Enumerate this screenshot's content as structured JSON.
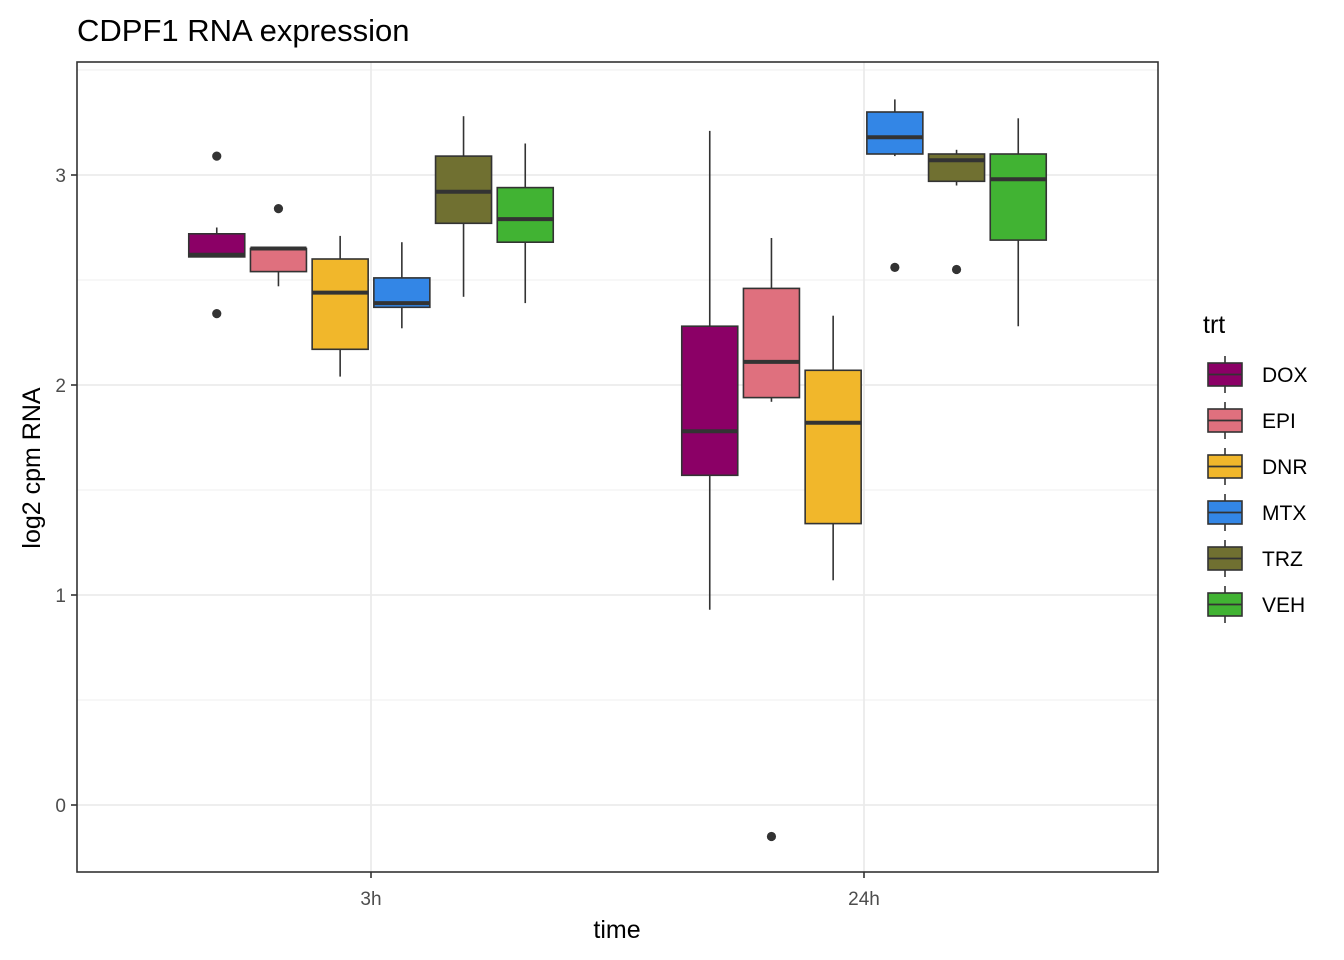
{
  "chart_data": {
    "type": "boxplot",
    "title": "CDPF1  RNA expression",
    "xlabel": "time",
    "ylabel": "log2 cpm RNA",
    "categories": [
      "3h",
      "24h"
    ],
    "ylim": [
      -0.32,
      3.5
    ],
    "yticks": [
      0,
      1,
      2,
      3
    ],
    "grid": true,
    "legend": {
      "title": "trt",
      "position": "right"
    },
    "series": [
      {
        "name": "DOX",
        "color": "#8B0066",
        "boxes": [
          {
            "category": "3h",
            "whisker_low": 2.61,
            "q1": 2.61,
            "median": 2.62,
            "q3": 2.72,
            "whisker_high": 2.75,
            "outliers": [
              3.09,
              2.34
            ]
          },
          {
            "category": "24h",
            "whisker_low": 0.93,
            "q1": 1.57,
            "median": 1.78,
            "q3": 2.28,
            "whisker_high": 3.21,
            "outliers": []
          }
        ]
      },
      {
        "name": "EPI",
        "color": "#DF707E",
        "boxes": [
          {
            "category": "3h",
            "whisker_low": 2.47,
            "q1": 2.54,
            "median": 2.65,
            "q3": 2.65,
            "whisker_high": 2.65,
            "outliers": [
              2.84
            ]
          },
          {
            "category": "24h",
            "whisker_low": 1.92,
            "q1": 1.94,
            "median": 2.11,
            "q3": 2.46,
            "whisker_high": 2.7,
            "outliers": [
              -0.15
            ]
          }
        ]
      },
      {
        "name": "DNR",
        "color": "#F1B72B",
        "boxes": [
          {
            "category": "3h",
            "whisker_low": 2.04,
            "q1": 2.17,
            "median": 2.44,
            "q3": 2.6,
            "whisker_high": 2.71,
            "outliers": []
          },
          {
            "category": "24h",
            "whisker_low": 1.07,
            "q1": 1.34,
            "median": 1.82,
            "q3": 2.07,
            "whisker_high": 2.33,
            "outliers": []
          }
        ]
      },
      {
        "name": "MTX",
        "color": "#3386E6",
        "boxes": [
          {
            "category": "3h",
            "whisker_low": 2.27,
            "q1": 2.37,
            "median": 2.39,
            "q3": 2.51,
            "whisker_high": 2.68,
            "outliers": []
          },
          {
            "category": "24h",
            "whisker_low": 3.09,
            "q1": 3.1,
            "median": 3.18,
            "q3": 3.3,
            "whisker_high": 3.36,
            "outliers": [
              2.56
            ]
          }
        ]
      },
      {
        "name": "TRZ",
        "color": "#707031",
        "boxes": [
          {
            "category": "3h",
            "whisker_low": 2.42,
            "q1": 2.77,
            "median": 2.92,
            "q3": 3.09,
            "whisker_high": 3.28,
            "outliers": []
          },
          {
            "category": "24h",
            "whisker_low": 2.95,
            "q1": 2.97,
            "median": 3.07,
            "q3": 3.1,
            "whisker_high": 3.12,
            "outliers": [
              2.55
            ]
          }
        ]
      },
      {
        "name": "VEH",
        "color": "#41B333",
        "boxes": [
          {
            "category": "3h",
            "whisker_low": 2.39,
            "q1": 2.68,
            "median": 2.79,
            "q3": 2.94,
            "whisker_high": 3.15,
            "outliers": []
          },
          {
            "category": "24h",
            "whisker_low": 2.28,
            "q1": 2.69,
            "median": 2.98,
            "q3": 3.1,
            "whisker_high": 3.27,
            "outliers": []
          }
        ]
      }
    ]
  }
}
